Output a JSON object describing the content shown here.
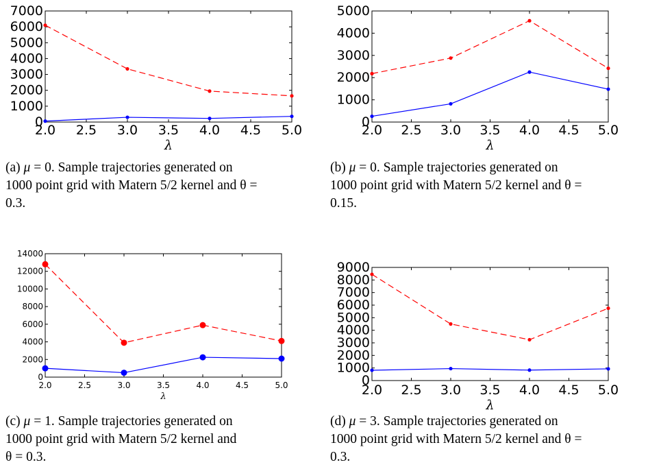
{
  "colors": {
    "upper": "#ff0000",
    "lower": "#0000ff"
  },
  "captions": [
    {
      "label": "(a)",
      "mu_prefix": "μ",
      "mu_value": " = 0. ",
      "lines": [
        "Sample trajectories generated on",
        "1000 point grid with Matern 5/2 kernel and θ =",
        "0.3."
      ]
    },
    {
      "label": "(b)",
      "mu_prefix": "μ",
      "mu_value": " = 0. ",
      "lines": [
        "Sample trajectories generated on",
        "1000 point grid with Matern 5/2 kernel and θ =",
        "0.15."
      ]
    },
    {
      "label": "(c)",
      "mu_prefix": "μ",
      "mu_value": " = 1. ",
      "lines": [
        "Sample trajectories generated on",
        "1000 point grid with Matern 5/2 kernel and",
        "θ = 0.3."
      ]
    },
    {
      "label": "(d)",
      "mu_prefix": "μ",
      "mu_value": " = 3. ",
      "lines": [
        "Sample trajectories generated on",
        "1000 point grid with Matern 5/2 kernel and θ =",
        "0.3."
      ]
    }
  ],
  "chart_data": [
    {
      "type": "line",
      "xlabel": "λ",
      "x": [
        2.0,
        3.0,
        4.0,
        5.0
      ],
      "xlim": [
        2.0,
        5.0
      ],
      "xticks": [
        "2.0",
        "2.5",
        "3.0",
        "3.5",
        "4.0",
        "4.5",
        "5.0"
      ],
      "ylim": [
        0,
        7000
      ],
      "yticks": [
        "0",
        "1000",
        "2000",
        "3000",
        "4000",
        "5000",
        "6000",
        "7000"
      ],
      "series": [
        {
          "style": "dashed",
          "color": "#ff0000",
          "values": [
            6100,
            3350,
            1950,
            1650
          ]
        },
        {
          "style": "solid",
          "color": "#0000ff",
          "values": [
            60,
            300,
            230,
            360
          ]
        }
      ]
    },
    {
      "type": "line",
      "xlabel": "λ",
      "x": [
        2.0,
        3.0,
        4.0,
        5.0
      ],
      "xlim": [
        2.0,
        5.0
      ],
      "xticks": [
        "2.0",
        "2.5",
        "3.0",
        "3.5",
        "4.0",
        "4.5",
        "5.0"
      ],
      "ylim": [
        0,
        5000
      ],
      "yticks": [
        "0",
        "1000",
        "2000",
        "3000",
        "4000",
        "5000"
      ],
      "series": [
        {
          "style": "dashed",
          "color": "#ff0000",
          "values": [
            2180,
            2880,
            4560,
            2420
          ]
        },
        {
          "style": "solid",
          "color": "#0000ff",
          "values": [
            260,
            820,
            2250,
            1480
          ]
        }
      ]
    },
    {
      "type": "line",
      "xlabel": "λ",
      "x": [
        2.0,
        3.0,
        4.0,
        5.0
      ],
      "xlim": [
        2.0,
        5.0
      ],
      "xticks": [
        "2.0",
        "2.5",
        "3.0",
        "3.5",
        "4.0",
        "4.5",
        "5.0"
      ],
      "ylim": [
        0,
        14000
      ],
      "yticks": [
        "0",
        "2000",
        "4000",
        "6000",
        "8000",
        "10000",
        "12000",
        "14000"
      ],
      "series": [
        {
          "style": "dashed",
          "color": "#ff0000",
          "values": [
            12800,
            3900,
            5900,
            4100
          ]
        },
        {
          "style": "solid",
          "color": "#0000ff",
          "values": [
            1000,
            500,
            2250,
            2100
          ]
        }
      ]
    },
    {
      "type": "line",
      "xlabel": "λ",
      "x": [
        2.0,
        3.0,
        4.0,
        5.0
      ],
      "xlim": [
        2.0,
        5.0
      ],
      "xticks": [
        "2.0",
        "2.5",
        "3.0",
        "3.5",
        "4.0",
        "4.5",
        "5.0"
      ],
      "ylim": [
        0,
        9000
      ],
      "yticks": [
        "0",
        "1000",
        "2000",
        "3000",
        "4000",
        "5000",
        "6000",
        "7000",
        "8000",
        "9000"
      ],
      "series": [
        {
          "style": "dashed",
          "color": "#ff0000",
          "values": [
            8450,
            4500,
            3250,
            5750
          ]
        },
        {
          "style": "solid",
          "color": "#0000ff",
          "values": [
            820,
            950,
            830,
            930
          ]
        }
      ]
    }
  ]
}
